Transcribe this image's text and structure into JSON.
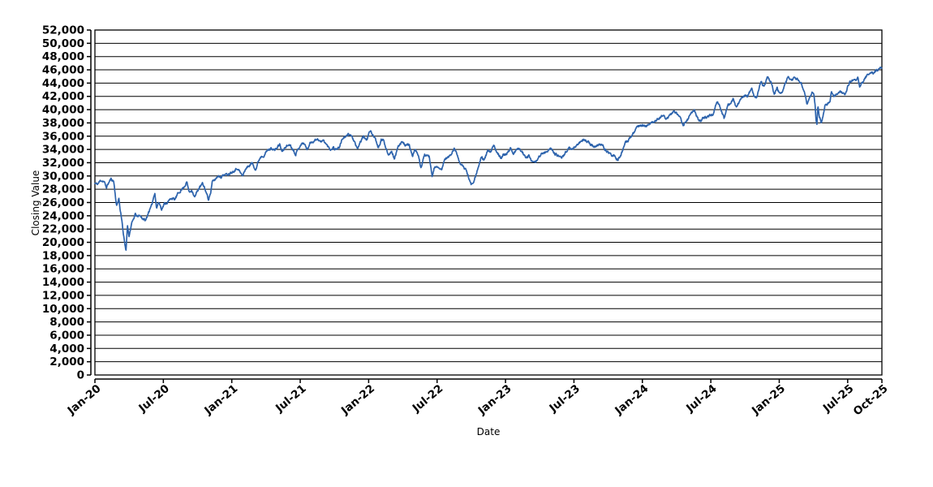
{
  "window": {
    "background_color": "#ffffff"
  },
  "chart_data": {
    "type": "line",
    "title": "",
    "xlabel": "Date",
    "ylabel": "Closing Value",
    "legend_position": "none",
    "grid": true,
    "series_name": "Closing Value",
    "colors": {
      "line": "#2D63AC",
      "grid": "#000000",
      "axis": "#000000",
      "text": "#000000",
      "plot_background": "#ffffff"
    },
    "y_axis": {
      "min": 0,
      "max": 52000,
      "step": 2000,
      "tick_label_format": "thousands-comma"
    },
    "x_axis": {
      "unit": "months since Jan-2020",
      "min": 0,
      "max": 69,
      "ticks": [
        {
          "label": "Jan-20",
          "m": 0
        },
        {
          "label": "Jul-20",
          "m": 6
        },
        {
          "label": "Jan-21",
          "m": 12
        },
        {
          "label": "Jul-21",
          "m": 18
        },
        {
          "label": "Jan-22",
          "m": 24
        },
        {
          "label": "Jul-22",
          "m": 30
        },
        {
          "label": "Jan-23",
          "m": 36
        },
        {
          "label": "Jul-23",
          "m": 42
        },
        {
          "label": "Jan-24",
          "m": 48
        },
        {
          "label": "Jul-24",
          "m": 54
        },
        {
          "label": "Jan-25",
          "m": 60
        },
        {
          "label": "Jul-25",
          "m": 66
        },
        {
          "label": "Oct-25",
          "m": 69
        }
      ]
    },
    "keypoints": [
      [
        0,
        28868
      ],
      [
        0.25,
        28784
      ],
      [
        0.5,
        29348
      ],
      [
        0.8,
        29160
      ],
      [
        1.0,
        28256
      ],
      [
        1.15,
        28807
      ],
      [
        1.4,
        29551
      ],
      [
        1.65,
        29220
      ],
      [
        1.9,
        25409
      ],
      [
        2.1,
        26703
      ],
      [
        2.2,
        25018
      ],
      [
        2.35,
        23553
      ],
      [
        2.5,
        21200
      ],
      [
        2.6,
        19899
      ],
      [
        2.72,
        18592
      ],
      [
        2.85,
        22552
      ],
      [
        3.0,
        20943
      ],
      [
        3.2,
        22680
      ],
      [
        3.55,
        24242
      ],
      [
        3.75,
        23775
      ],
      [
        3.9,
        24133
      ],
      [
        4.1,
        23724
      ],
      [
        4.45,
        23248
      ],
      [
        4.7,
        24575
      ],
      [
        4.95,
        25383
      ],
      [
        5.25,
        27572
      ],
      [
        5.4,
        25128
      ],
      [
        5.6,
        26080
      ],
      [
        5.85,
        25016
      ],
      [
        6.1,
        25813
      ],
      [
        6.4,
        26067
      ],
      [
        6.7,
        26680
      ],
      [
        7.0,
        26428
      ],
      [
        7.3,
        27387
      ],
      [
        7.6,
        27931
      ],
      [
        7.93,
        28654
      ],
      [
        8.05,
        29100
      ],
      [
        8.28,
        27501
      ],
      [
        8.5,
        27902
      ],
      [
        8.75,
        26763
      ],
      [
        9.0,
        27816
      ],
      [
        9.2,
        28303
      ],
      [
        9.42,
        28838
      ],
      [
        9.6,
        28308
      ],
      [
        9.95,
        26502
      ],
      [
        10.15,
        27480
      ],
      [
        10.3,
        29158
      ],
      [
        10.55,
        29480
      ],
      [
        10.8,
        30046
      ],
      [
        11.05,
        29872
      ],
      [
        11.35,
        30218
      ],
      [
        11.6,
        30199
      ],
      [
        12.0,
        30606
      ],
      [
        12.3,
        30930
      ],
      [
        12.5,
        31188
      ],
      [
        12.95,
        29983
      ],
      [
        13.2,
        31056
      ],
      [
        13.45,
        31458
      ],
      [
        13.8,
        31962
      ],
      [
        14.1,
        30924
      ],
      [
        14.35,
        32297
      ],
      [
        14.55,
        32953
      ],
      [
        14.8,
        33066
      ],
      [
        15.1,
        33800
      ],
      [
        15.5,
        34201
      ],
      [
        15.8,
        33875
      ],
      [
        16.2,
        34778
      ],
      [
        16.42,
        33588
      ],
      [
        16.7,
        34394
      ],
      [
        17.1,
        34756
      ],
      [
        17.6,
        33290
      ],
      [
        18.05,
        34786
      ],
      [
        18.35,
        34933
      ],
      [
        18.6,
        33962
      ],
      [
        18.9,
        35062
      ],
      [
        19.2,
        35265
      ],
      [
        19.5,
        35625
      ],
      [
        19.8,
        35120
      ],
      [
        20.05,
        35369
      ],
      [
        20.35,
        34608
      ],
      [
        20.65,
        33971
      ],
      [
        20.9,
        34326
      ],
      [
        21.1,
        34002
      ],
      [
        21.45,
        34378
      ],
      [
        21.7,
        35677
      ],
      [
        22.0,
        35820
      ],
      [
        22.25,
        36432
      ],
      [
        22.55,
        35921
      ],
      [
        23.0,
        34022
      ],
      [
        23.3,
        35227
      ],
      [
        23.55,
        35971
      ],
      [
        23.8,
        35365
      ],
      [
        24.0,
        36338
      ],
      [
        24.12,
        36800
      ],
      [
        24.5,
        35912
      ],
      [
        24.85,
        34160
      ],
      [
        25.1,
        35405
      ],
      [
        25.28,
        35462
      ],
      [
        25.55,
        34079
      ],
      [
        25.78,
        33132
      ],
      [
        26.0,
        33892
      ],
      [
        26.25,
        32632
      ],
      [
        26.6,
        34358
      ],
      [
        26.92,
        35294
      ],
      [
        27.2,
        34678
      ],
      [
        27.55,
        34721
      ],
      [
        27.85,
        32899
      ],
      [
        28.1,
        34049
      ],
      [
        28.35,
        32997
      ],
      [
        28.6,
        31253
      ],
      [
        28.9,
        33213
      ],
      [
        29.1,
        32990
      ],
      [
        29.3,
        32915
      ],
      [
        29.57,
        29889
      ],
      [
        29.8,
        31500
      ],
      [
        30.1,
        31097
      ],
      [
        30.4,
        30967
      ],
      [
        30.7,
        32637
      ],
      [
        31.0,
        32803
      ],
      [
        31.25,
        33309
      ],
      [
        31.52,
        34152
      ],
      [
        31.8,
        33064
      ],
      [
        32.05,
        31790
      ],
      [
        32.3,
        31318
      ],
      [
        32.55,
        30962
      ],
      [
        32.8,
        29591
      ],
      [
        32.97,
        28726
      ],
      [
        33.2,
        29203
      ],
      [
        33.45,
        30424
      ],
      [
        33.9,
        32862
      ],
      [
        34.15,
        32403
      ],
      [
        34.42,
        33747
      ],
      [
        34.7,
        33592
      ],
      [
        34.97,
        34590
      ],
      [
        35.25,
        33597
      ],
      [
        35.62,
        32758
      ],
      [
        35.8,
        33204
      ],
      [
        36.0,
        33147
      ],
      [
        36.25,
        33631
      ],
      [
        36.45,
        34303
      ],
      [
        36.7,
        33297
      ],
      [
        36.95,
        33949
      ],
      [
        37.15,
        34086
      ],
      [
        37.45,
        33697
      ],
      [
        37.72,
        32890
      ],
      [
        38.07,
        33003
      ],
      [
        38.25,
        32255
      ],
      [
        38.5,
        31875
      ],
      [
        38.75,
        32432
      ],
      [
        39.1,
        33274
      ],
      [
        39.4,
        33486
      ],
      [
        39.7,
        33826
      ],
      [
        40.0,
        34052
      ],
      [
        40.35,
        33320
      ],
      [
        40.82,
        32765
      ],
      [
        41.1,
        33093
      ],
      [
        41.3,
        33665
      ],
      [
        41.55,
        34299
      ],
      [
        41.8,
        33930
      ],
      [
        42.1,
        34418
      ],
      [
        42.45,
        34952
      ],
      [
        42.85,
        35520
      ],
      [
        43.1,
        35283
      ],
      [
        43.4,
        34890
      ],
      [
        43.8,
        34347
      ],
      [
        44.1,
        34576
      ],
      [
        44.45,
        34907
      ],
      [
        44.7,
        34007
      ],
      [
        45.0,
        33508
      ],
      [
        45.3,
        33119
      ],
      [
        45.55,
        33036
      ],
      [
        45.85,
        32418
      ],
      [
        46.1,
        33053
      ],
      [
        46.5,
        34947
      ],
      [
        46.75,
        35273
      ],
      [
        47.05,
        36118
      ],
      [
        47.45,
        37090
      ],
      [
        47.7,
        37546
      ],
      [
        48.0,
        37690
      ],
      [
        48.3,
        37361
      ],
      [
        48.6,
        37864
      ],
      [
        49.0,
        38150
      ],
      [
        49.35,
        38564
      ],
      [
        49.78,
        39132
      ],
      [
        50.1,
        38586
      ],
      [
        50.4,
        39080
      ],
      [
        50.72,
        39781
      ],
      [
        51.0,
        39511
      ],
      [
        51.3,
        38893
      ],
      [
        51.57,
        37753
      ],
      [
        51.9,
        38240
      ],
      [
        52.2,
        39388
      ],
      [
        52.55,
        40004
      ],
      [
        52.97,
        38111
      ],
      [
        53.3,
        38647
      ],
      [
        53.6,
        38834
      ],
      [
        53.9,
        39119
      ],
      [
        54.2,
        39376
      ],
      [
        54.55,
        41198
      ],
      [
        54.8,
        40358
      ],
      [
        55.17,
        38703
      ],
      [
        55.5,
        40659
      ],
      [
        55.97,
        41563
      ],
      [
        56.22,
        40345
      ],
      [
        56.55,
        41394
      ],
      [
        56.9,
        42063
      ],
      [
        57.2,
        41954
      ],
      [
        57.58,
        43275
      ],
      [
        57.8,
        42114
      ],
      [
        58.02,
        41763
      ],
      [
        58.37,
        44293
      ],
      [
        58.65,
        43445
      ],
      [
        58.97,
        44911
      ],
      [
        59.25,
        44247
      ],
      [
        59.58,
        42327
      ],
      [
        59.8,
        43326
      ],
      [
        60.0,
        42544
      ],
      [
        60.3,
        42732
      ],
      [
        60.58,
        44156
      ],
      [
        60.8,
        44882
      ],
      [
        61.05,
        44545
      ],
      [
        61.35,
        44746
      ],
      [
        61.6,
        44593
      ],
      [
        61.95,
        43841
      ],
      [
        62.2,
        42520
      ],
      [
        62.45,
        40814
      ],
      [
        62.7,
        41953
      ],
      [
        62.88,
        42587
      ],
      [
        63.05,
        42225
      ],
      [
        63.15,
        40546
      ],
      [
        63.22,
        38315
      ],
      [
        63.3,
        37646
      ],
      [
        63.38,
        40608
      ],
      [
        63.5,
        39186
      ],
      [
        63.68,
        38170
      ],
      [
        63.85,
        39187
      ],
      [
        64.0,
        40527
      ],
      [
        64.2,
        40829
      ],
      [
        64.45,
        41368
      ],
      [
        64.58,
        42655
      ],
      [
        64.8,
        42098
      ],
      [
        65.05,
        42270
      ],
      [
        65.35,
        42763
      ],
      [
        65.6,
        42515
      ],
      [
        65.78,
        42207
      ],
      [
        66.0,
        43387
      ],
      [
        66.15,
        44095
      ],
      [
        66.4,
        44459
      ],
      [
        66.65,
        44342
      ],
      [
        66.9,
        44902
      ],
      [
        67.05,
        43589
      ],
      [
        67.35,
        44176
      ],
      [
        67.6,
        44946
      ],
      [
        68.0,
        45545
      ],
      [
        68.25,
        45401
      ],
      [
        68.45,
        45834
      ],
      [
        68.65,
        46018
      ],
      [
        68.9,
        46247
      ],
      [
        69.0,
        46320
      ]
    ],
    "noise": {
      "amplitude": 150,
      "rho": 0.5,
      "seed": 11,
      "step_days": 1
    }
  }
}
